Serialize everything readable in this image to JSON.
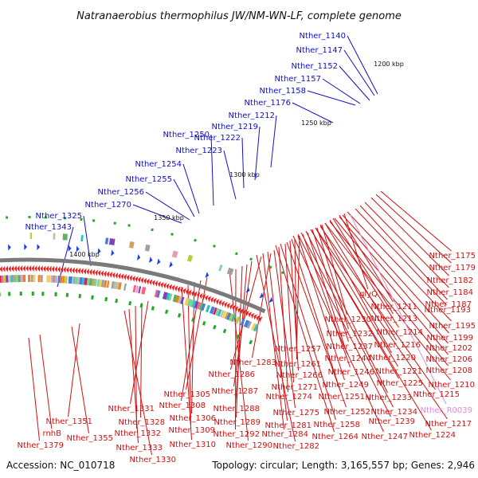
{
  "title": "Natranaerobius thermophilus JW/NM-WN-LF, complete genome",
  "footer": {
    "accession": "Accession: NC_010718",
    "summary": "Topology: circular; Length: 3,165,557 bp; Genes: 2,946"
  },
  "kbp_marks": [
    "1200 kbp",
    "1250 kbp",
    "1300 kbp",
    "1350 kbp",
    "1400 kbp"
  ],
  "colors": {
    "reverse_label": "#1010c8",
    "forward_label": "#d01010",
    "rna_label": "#e08ad8",
    "backbone": "#7a7a7a",
    "forward_cds": "#ee1a1a",
    "reverse_cds": "#1a3cf0",
    "cog_stripe": "#22aa22"
  },
  "reverse_strand_labels": [
    "Nther_1140",
    "Nther_1147",
    "Nther_1152",
    "Nther_1157",
    "Nther_1158",
    "Nther_1176",
    "Nther_1212",
    "Nther_1219",
    "Nther_1222",
    "Nther_1250",
    "Nther_1223",
    "Nther_1254",
    "Nther_1255",
    "Nther_1256",
    "Nther_1270",
    "Nther_1325",
    "Nther_1343"
  ],
  "forward_strand_labels": [
    "Nther_1175",
    "Nther_1179",
    "Nther_1182",
    "Nther_1184",
    "Nther_1187",
    "glyQ",
    "Nther_1211",
    "Nther_1193",
    "Nther_1213",
    "Nther_1230",
    "Nther_1195",
    "Nther_1232",
    "Nther_1214",
    "Nther_1199",
    "Nther_1237",
    "Nther_1216",
    "Nther_1202",
    "Nther_1257",
    "Nther_1244",
    "Nther_1220",
    "Nther_1206",
    "Nther_1283",
    "Nther_1261",
    "Nther_1208",
    "Nther_1286",
    "Nther_1266",
    "Nther_1246",
    "Nther_1221",
    "Nther_1271",
    "Nther_1249",
    "Nther_1225",
    "Nther_1287",
    "Nther_1210",
    "Nther_1305",
    "Nther_1274",
    "Nther_1251",
    "Nther_1233",
    "Nther_1215",
    "Nther_1308",
    "Nther_1288",
    "Nther_1331",
    "Nther_1275",
    "Nther_1252",
    "Nther_1234",
    "Nther_1306",
    "Nther_1258",
    "Nther_1239",
    "Nther_1351",
    "Nther_1328",
    "Nther_1289",
    "Nther_1281",
    "Nther_1217",
    "Nther_1309",
    "Nther_1292",
    "Nther_1284",
    "Nther_1264",
    "Nther_1247",
    "Nther_1224",
    "rnhB",
    "Nther_1332",
    "Nther_1355",
    "Nther_1333",
    "Nther_1310",
    "Nther_1290",
    "Nther_1282",
    "Nther_1379",
    "Nther_1330"
  ],
  "rna_labels": [
    "Nther_R0039"
  ]
}
